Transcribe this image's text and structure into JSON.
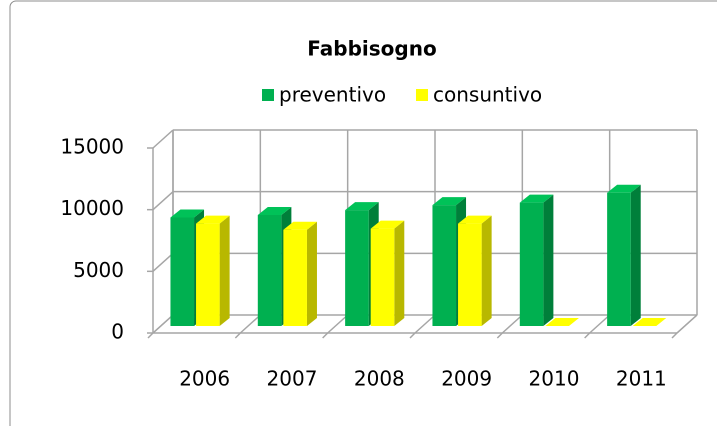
{
  "chart_data": {
    "type": "bar3d",
    "title": "Fabbisogno",
    "categories": [
      "2006",
      "2007",
      "2008",
      "2009",
      "2010",
      "2011"
    ],
    "series": [
      {
        "name": "preventivo",
        "color": "#00b050",
        "values": [
          8800,
          9000,
          9400,
          9800,
          10000,
          10800
        ]
      },
      {
        "name": "consuntivo",
        "color": "#ffff00",
        "values": [
          8300,
          7800,
          7900,
          8300,
          0,
          0
        ]
      }
    ],
    "ylim": [
      0,
      15000
    ],
    "yticks": [
      0,
      5000,
      10000,
      15000
    ],
    "grid": true,
    "legend": "top"
  }
}
